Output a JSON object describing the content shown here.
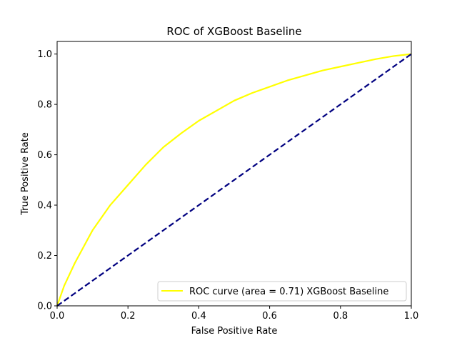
{
  "chart_data": {
    "type": "line",
    "title": "ROC of XGBoost Baseline",
    "xlabel": "False Positive Rate",
    "ylabel": "True Positive Rate",
    "xlim": [
      0.0,
      1.0
    ],
    "ylim": [
      0.0,
      1.05
    ],
    "xticks": [
      0.0,
      0.2,
      0.4,
      0.6,
      0.8,
      1.0
    ],
    "yticks": [
      0.0,
      0.2,
      0.4,
      0.6,
      0.8,
      1.0
    ],
    "xtick_labels": [
      "0.0",
      "0.2",
      "0.4",
      "0.6",
      "0.8",
      "1.0"
    ],
    "ytick_labels": [
      "0.0",
      "0.2",
      "0.4",
      "0.6",
      "0.8",
      "1.0"
    ],
    "grid": false,
    "legend_position": "lower-right",
    "series": [
      {
        "name": "ROC curve (area = 0.71) XGBoost Baseline",
        "color": "#ffff00",
        "style": "solid",
        "x": [
          0.0,
          0.02,
          0.05,
          0.1,
          0.15,
          0.2,
          0.25,
          0.3,
          0.35,
          0.4,
          0.45,
          0.5,
          0.55,
          0.6,
          0.65,
          0.7,
          0.75,
          0.8,
          0.85,
          0.9,
          0.95,
          1.0
        ],
        "y": [
          0.0,
          0.08,
          0.17,
          0.3,
          0.4,
          0.48,
          0.56,
          0.63,
          0.685,
          0.735,
          0.775,
          0.815,
          0.845,
          0.87,
          0.895,
          0.915,
          0.935,
          0.95,
          0.965,
          0.98,
          0.992,
          1.0
        ]
      },
      {
        "name": "",
        "color": "#000080",
        "style": "dashed",
        "x": [
          0.0,
          1.0
        ],
        "y": [
          0.0,
          1.0
        ]
      }
    ]
  }
}
